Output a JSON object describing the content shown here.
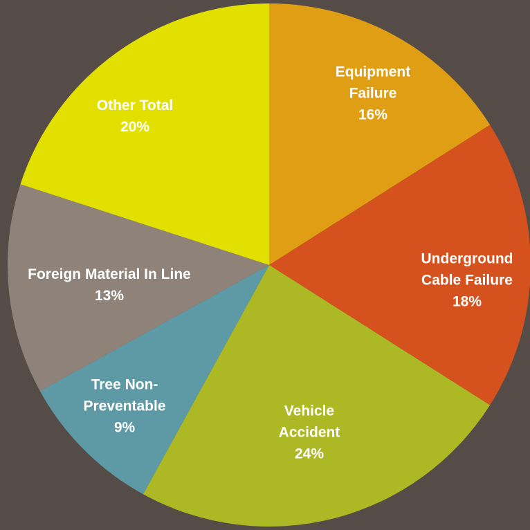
{
  "chart_data": {
    "type": "pie",
    "categories": [
      "Equipment Failure",
      "Underground Cable Failure",
      "Vehicle Accident",
      "Tree Non-Preventable",
      "Foreign Material In Line",
      "Other Total"
    ],
    "values": [
      16,
      18,
      24,
      9,
      13,
      20
    ],
    "value_labels": [
      "16%",
      "18%",
      "24%",
      "9%",
      "13%",
      "20%"
    ],
    "colors": [
      "#e09e14",
      "#d5521e",
      "#adb825",
      "#5e9aa5",
      "#8f8379",
      "#e2e000"
    ]
  }
}
